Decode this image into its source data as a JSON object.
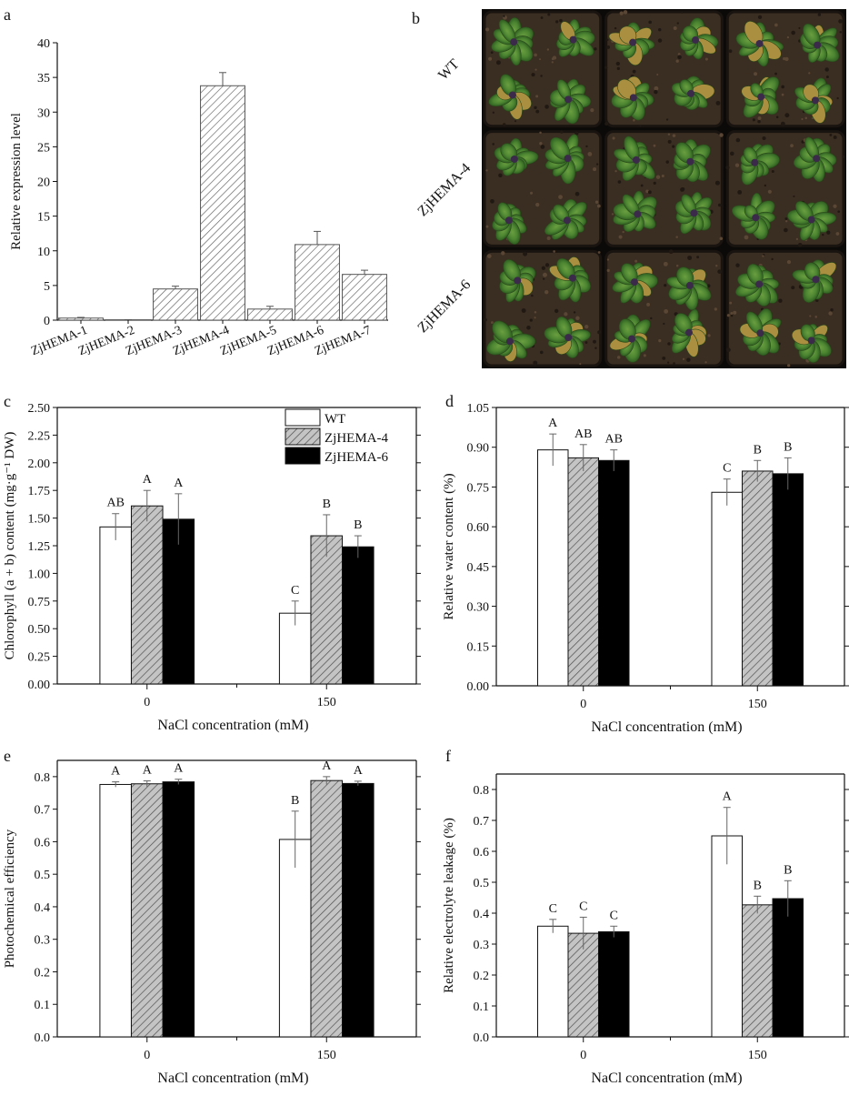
{
  "colors": {
    "hatch": "#606060",
    "bar_fill": "#ffffff",
    "wt": "#ffffff",
    "zjhema4": "#bdbdbd",
    "zjhema6": "#000000",
    "soil": "#2e241b",
    "leaf": "#4f8a36"
  },
  "photo_panel": {
    "letter": "b",
    "row_labels": [
      "WT",
      "ZjHEMA-4",
      "ZjHEMA-6"
    ]
  },
  "chart_data": [
    {
      "id": "a",
      "letter": "a",
      "type": "bar",
      "categories": [
        "ZjHEMA-1",
        "ZjHEMA-2",
        "ZjHEMA-3",
        "ZjHEMA-4",
        "ZjHEMA-5",
        "ZjHEMA-6",
        "ZjHEMA-7"
      ],
      "values": [
        0.3,
        0.05,
        4.5,
        33.8,
        1.6,
        10.9,
        6.6
      ],
      "errors": [
        0.1,
        0.02,
        0.4,
        1.9,
        0.4,
        1.9,
        0.6
      ],
      "ylabel": "Relative expression level",
      "xlabel": "",
      "ylim": [
        0,
        40
      ],
      "yticks": [
        "0",
        "5",
        "10",
        "15",
        "20",
        "25",
        "30",
        "35",
        "40"
      ]
    },
    {
      "id": "c",
      "letter": "c",
      "type": "bar",
      "categories": [
        "0",
        "150"
      ],
      "series": [
        {
          "name": "WT",
          "values": [
            1.42,
            0.64
          ],
          "errors": [
            0.12,
            0.11
          ],
          "labels": [
            "AB",
            "C"
          ]
        },
        {
          "name": "ZjHEMA-4",
          "values": [
            1.61,
            1.34
          ],
          "errors": [
            0.14,
            0.19
          ],
          "labels": [
            "A",
            "B"
          ]
        },
        {
          "name": "ZjHEMA-6",
          "values": [
            1.49,
            1.24
          ],
          "errors": [
            0.23,
            0.1
          ],
          "labels": [
            "A",
            "B"
          ]
        }
      ],
      "ylabel": "Chlorophyll (a + b) content (mg·g⁻¹ DW)",
      "xlabel": "NaCl concentration (mM)",
      "ylim": [
        0,
        2.5
      ],
      "yticks": [
        "0.00",
        "0.25",
        "0.50",
        "0.75",
        "1.00",
        "1.25",
        "1.50",
        "1.75",
        "2.00",
        "2.25",
        "2.50"
      ],
      "legend": "top-center"
    },
    {
      "id": "d",
      "letter": "d",
      "type": "bar",
      "categories": [
        "0",
        "150"
      ],
      "series": [
        {
          "name": "WT",
          "values": [
            0.89,
            0.73
          ],
          "errors": [
            0.06,
            0.05
          ],
          "labels": [
            "A",
            "C"
          ]
        },
        {
          "name": "ZjHEMA-4",
          "values": [
            0.86,
            0.81
          ],
          "errors": [
            0.05,
            0.04
          ],
          "labels": [
            "AB",
            "B"
          ]
        },
        {
          "name": "ZjHEMA-6",
          "values": [
            0.85,
            0.8
          ],
          "errors": [
            0.04,
            0.06
          ],
          "labels": [
            "AB",
            "B"
          ]
        }
      ],
      "ylabel": "Relative water content (%)",
      "xlabel": "NaCl concentration (mM)",
      "ylim": [
        0,
        1.05
      ],
      "yticks": [
        "0.00",
        "0.15",
        "0.30",
        "0.45",
        "0.60",
        "0.75",
        "0.90",
        "1.05"
      ]
    },
    {
      "id": "e",
      "letter": "e",
      "type": "bar",
      "categories": [
        "0",
        "150"
      ],
      "series": [
        {
          "name": "WT",
          "values": [
            0.776,
            0.607
          ],
          "errors": [
            0.008,
            0.087
          ],
          "labels": [
            "A",
            "B"
          ]
        },
        {
          "name": "ZjHEMA-4",
          "values": [
            0.778,
            0.788
          ],
          "errors": [
            0.009,
            0.012
          ],
          "labels": [
            "A",
            "A"
          ]
        },
        {
          "name": "ZjHEMA-6",
          "values": [
            0.784,
            0.779
          ],
          "errors": [
            0.008,
            0.007
          ],
          "labels": [
            "A",
            "A"
          ]
        }
      ],
      "ylabel": "Photochemical efficiency",
      "xlabel": "NaCl concentration (mM)",
      "ylim": [
        0,
        0.85
      ],
      "yticks": [
        "0.0",
        "0.1",
        "0.2",
        "0.3",
        "0.4",
        "0.5",
        "0.6",
        "0.7",
        "0.8"
      ]
    },
    {
      "id": "f",
      "letter": "f",
      "type": "bar",
      "categories": [
        "0",
        "150"
      ],
      "series": [
        {
          "name": "WT",
          "values": [
            0.358,
            0.65
          ],
          "errors": [
            0.022,
            0.092
          ],
          "labels": [
            "C",
            "A"
          ]
        },
        {
          "name": "ZjHEMA-4",
          "values": [
            0.335,
            0.427
          ],
          "errors": [
            0.052,
            0.028
          ],
          "labels": [
            "C",
            "B"
          ]
        },
        {
          "name": "ZjHEMA-6",
          "values": [
            0.34,
            0.447
          ],
          "errors": [
            0.018,
            0.058
          ],
          "labels": [
            "C",
            "B"
          ]
        }
      ],
      "ylabel": "Relative electrolyte leakage (%)",
      "xlabel": "NaCl concentration (mM)",
      "ylim": [
        0,
        0.85
      ],
      "yticks": [
        "0.0",
        "0.1",
        "0.2",
        "0.3",
        "0.4",
        "0.5",
        "0.6",
        "0.7",
        "0.8"
      ]
    }
  ]
}
